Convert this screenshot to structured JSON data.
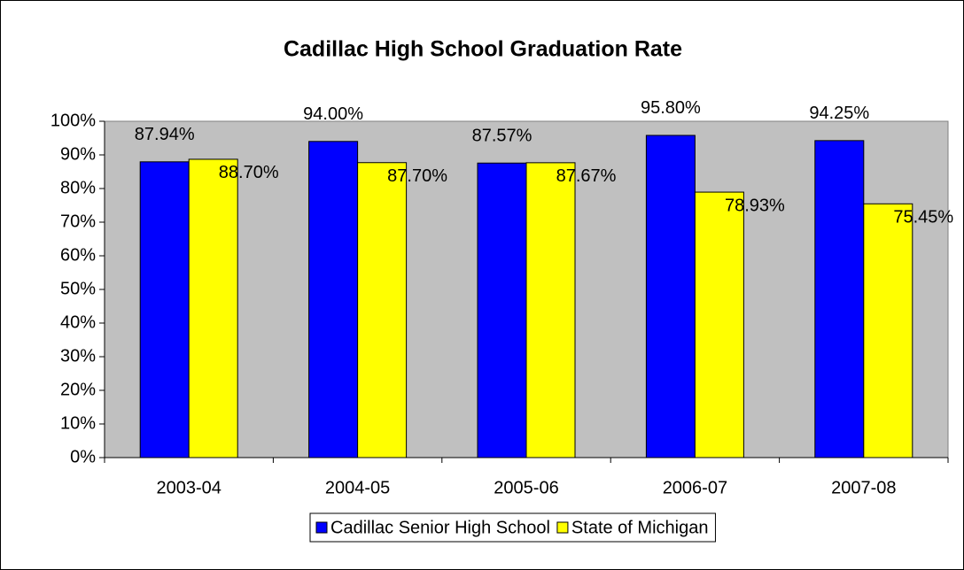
{
  "chart_data": {
    "type": "bar",
    "title": "Cadillac High School Graduation Rate",
    "categories": [
      "2003-04",
      "2004-05",
      "2005-06",
      "2006-07",
      "2007-08"
    ],
    "series": [
      {
        "name": "Cadillac Senior High School",
        "color": "#0000ff",
        "values": [
          87.94,
          94.0,
          87.57,
          95.8,
          94.25
        ],
        "value_labels": [
          "87.94%",
          "94.00%",
          "87.57%",
          "95.80%",
          "94.25%"
        ]
      },
      {
        "name": "State of Michigan",
        "color": "#ffff00",
        "values": [
          88.7,
          87.7,
          87.67,
          78.93,
          75.45
        ],
        "value_labels": [
          "88.70%",
          "87.70%",
          "87.67%",
          "78.93%",
          "75.45%"
        ]
      }
    ],
    "ylim": [
      0,
      100
    ],
    "yticks": [
      {
        "value": 0,
        "label": "0%"
      },
      {
        "value": 10,
        "label": "10%"
      },
      {
        "value": 20,
        "label": "20%"
      },
      {
        "value": 30,
        "label": "30%"
      },
      {
        "value": 40,
        "label": "40%"
      },
      {
        "value": 50,
        "label": "50%"
      },
      {
        "value": 60,
        "label": "60%"
      },
      {
        "value": 70,
        "label": "70%"
      },
      {
        "value": 80,
        "label": "80%"
      },
      {
        "value": 90,
        "label": "90%"
      },
      {
        "value": 100,
        "label": "100%"
      }
    ],
    "plot_background": "#c0c0c0",
    "legend": "bottom"
  }
}
